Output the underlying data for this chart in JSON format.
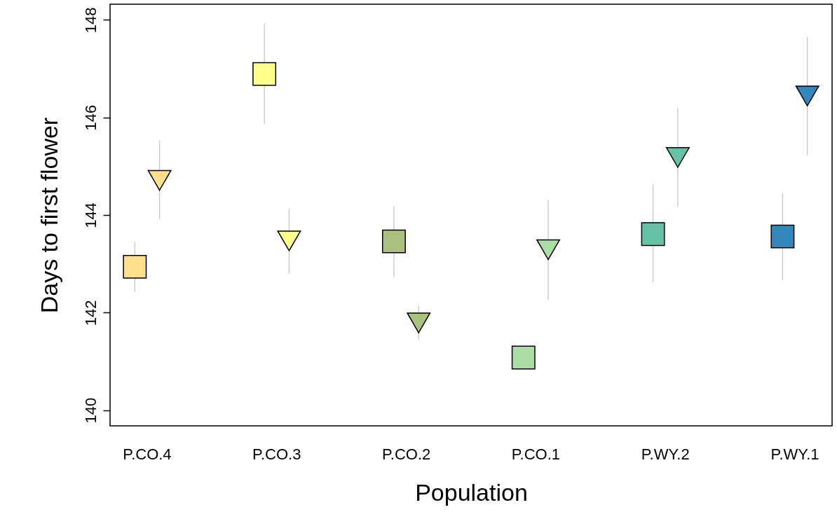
{
  "chart_data": {
    "type": "scatter",
    "xlabel": "Population",
    "ylabel": "Days to first flower",
    "categories": [
      "P.CO.4",
      "P.CO.3",
      "P.CO.2",
      "P.CO.1",
      "P.WY.2",
      "P.WY.1"
    ],
    "ylim": [
      139.68,
      148.32
    ],
    "yticks": [
      140,
      142,
      144,
      146,
      148
    ],
    "grid": false,
    "series": [
      {
        "marker": "square",
        "colors": [
          "#fedf8c",
          "#ffff8c",
          "#abc180",
          "#abdda4",
          "#66c2a5",
          "#3288bd"
        ],
        "values": [
          142.94,
          146.89,
          143.46,
          141.08,
          143.61,
          143.56
        ],
        "errors": [
          [
            142.42,
            143.45
          ],
          [
            145.86,
            147.93
          ],
          [
            142.73,
            144.18
          ],
          null,
          [
            142.62,
            144.63
          ],
          [
            142.66,
            144.44
          ]
        ]
      },
      {
        "marker": "triangle",
        "colors": [
          "#fedf8c",
          "#ffff8c",
          "#abc180",
          "#abdda4",
          "#66c2a5",
          "#3288bd"
        ],
        "values": [
          144.71,
          143.47,
          141.79,
          143.29,
          145.18,
          146.44
        ],
        "errors": [
          [
            143.91,
            145.52
          ],
          [
            142.81,
            144.13
          ],
          [
            141.44,
            142.14
          ],
          [
            142.26,
            144.31
          ],
          [
            144.17,
            146.19
          ],
          [
            145.22,
            147.65
          ]
        ]
      }
    ]
  }
}
